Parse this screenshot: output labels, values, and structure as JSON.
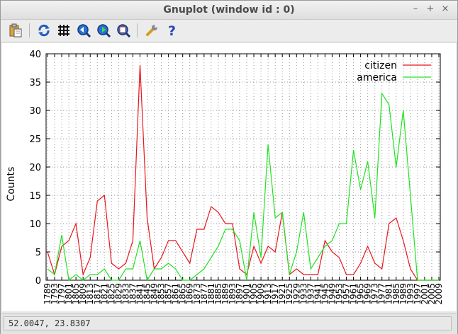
{
  "window": {
    "title": "Gnuplot (window id : 0)"
  },
  "window_controls": {
    "minimize": "–",
    "maximize": "+",
    "close": "×"
  },
  "toolbar": {
    "copy_icon": "clipboard-copy-icon",
    "replot_icon": "replot-icon",
    "grid_icon": "grid-icon",
    "prev_zoom_icon": "zoom-previous-icon",
    "next_zoom_icon": "zoom-next-icon",
    "autoscale_icon": "autoscale-icon",
    "config_icon": "wrench-icon",
    "help_icon": "help-icon",
    "help_glyph": "?"
  },
  "status": {
    "coords": "52.0047,  23.8307"
  },
  "colors": {
    "citizen": "#e8151b",
    "america": "#1ee31e"
  },
  "chart_data": {
    "type": "line",
    "title": "",
    "xlabel": "",
    "ylabel": "Counts",
    "ylim": [
      0,
      40
    ],
    "yticks": [
      "0",
      "5",
      "10",
      "15",
      "20",
      "25",
      "30",
      "35",
      "40"
    ],
    "grid": true,
    "legend_position": "top-right",
    "x": [
      "1789",
      "1793",
      "1797",
      "1801",
      "1805",
      "1809",
      "1813",
      "1817",
      "1821",
      "1825",
      "1829",
      "1833",
      "1837",
      "1841",
      "1845",
      "1849",
      "1853",
      "1857",
      "1861",
      "1865",
      "1869",
      "1873",
      "1877",
      "1881",
      "1885",
      "1889",
      "1893",
      "1897",
      "1901",
      "1905",
      "1909",
      "1913",
      "1917",
      "1921",
      "1925",
      "1929",
      "1933",
      "1937",
      "1941",
      "1945",
      "1949",
      "1953",
      "1957",
      "1961",
      "1965",
      "1969",
      "1973",
      "1977",
      "1981",
      "1985",
      "1989",
      "1993",
      "1997",
      "2001",
      "2005",
      "2009"
    ],
    "series": [
      {
        "name": "citizen",
        "values": [
          5,
          1,
          6,
          7,
          10,
          1,
          4,
          14,
          15,
          3,
          2,
          3,
          7,
          38,
          11,
          2,
          4,
          7,
          7,
          5,
          3,
          9,
          9,
          13,
          12,
          10,
          10,
          2,
          1,
          6,
          3,
          6,
          5,
          12,
          1,
          2,
          1,
          1,
          1,
          7,
          5,
          4,
          1,
          1,
          3,
          6,
          3,
          2,
          10,
          11,
          7,
          2,
          0,
          0,
          0,
          0
        ]
      },
      {
        "name": "america",
        "values": [
          2,
          1,
          8,
          0,
          1,
          0,
          1,
          1,
          2,
          0,
          0,
          2,
          2,
          7,
          0,
          2,
          2,
          3,
          2,
          0,
          0,
          1,
          2,
          4,
          6,
          9,
          9,
          7,
          0,
          12,
          4,
          24,
          11,
          12,
          1,
          5,
          12,
          2,
          4,
          6,
          7,
          10,
          10,
          23,
          16,
          21,
          11,
          33,
          31,
          20,
          30,
          15,
          0,
          0,
          0,
          0
        ]
      }
    ]
  }
}
